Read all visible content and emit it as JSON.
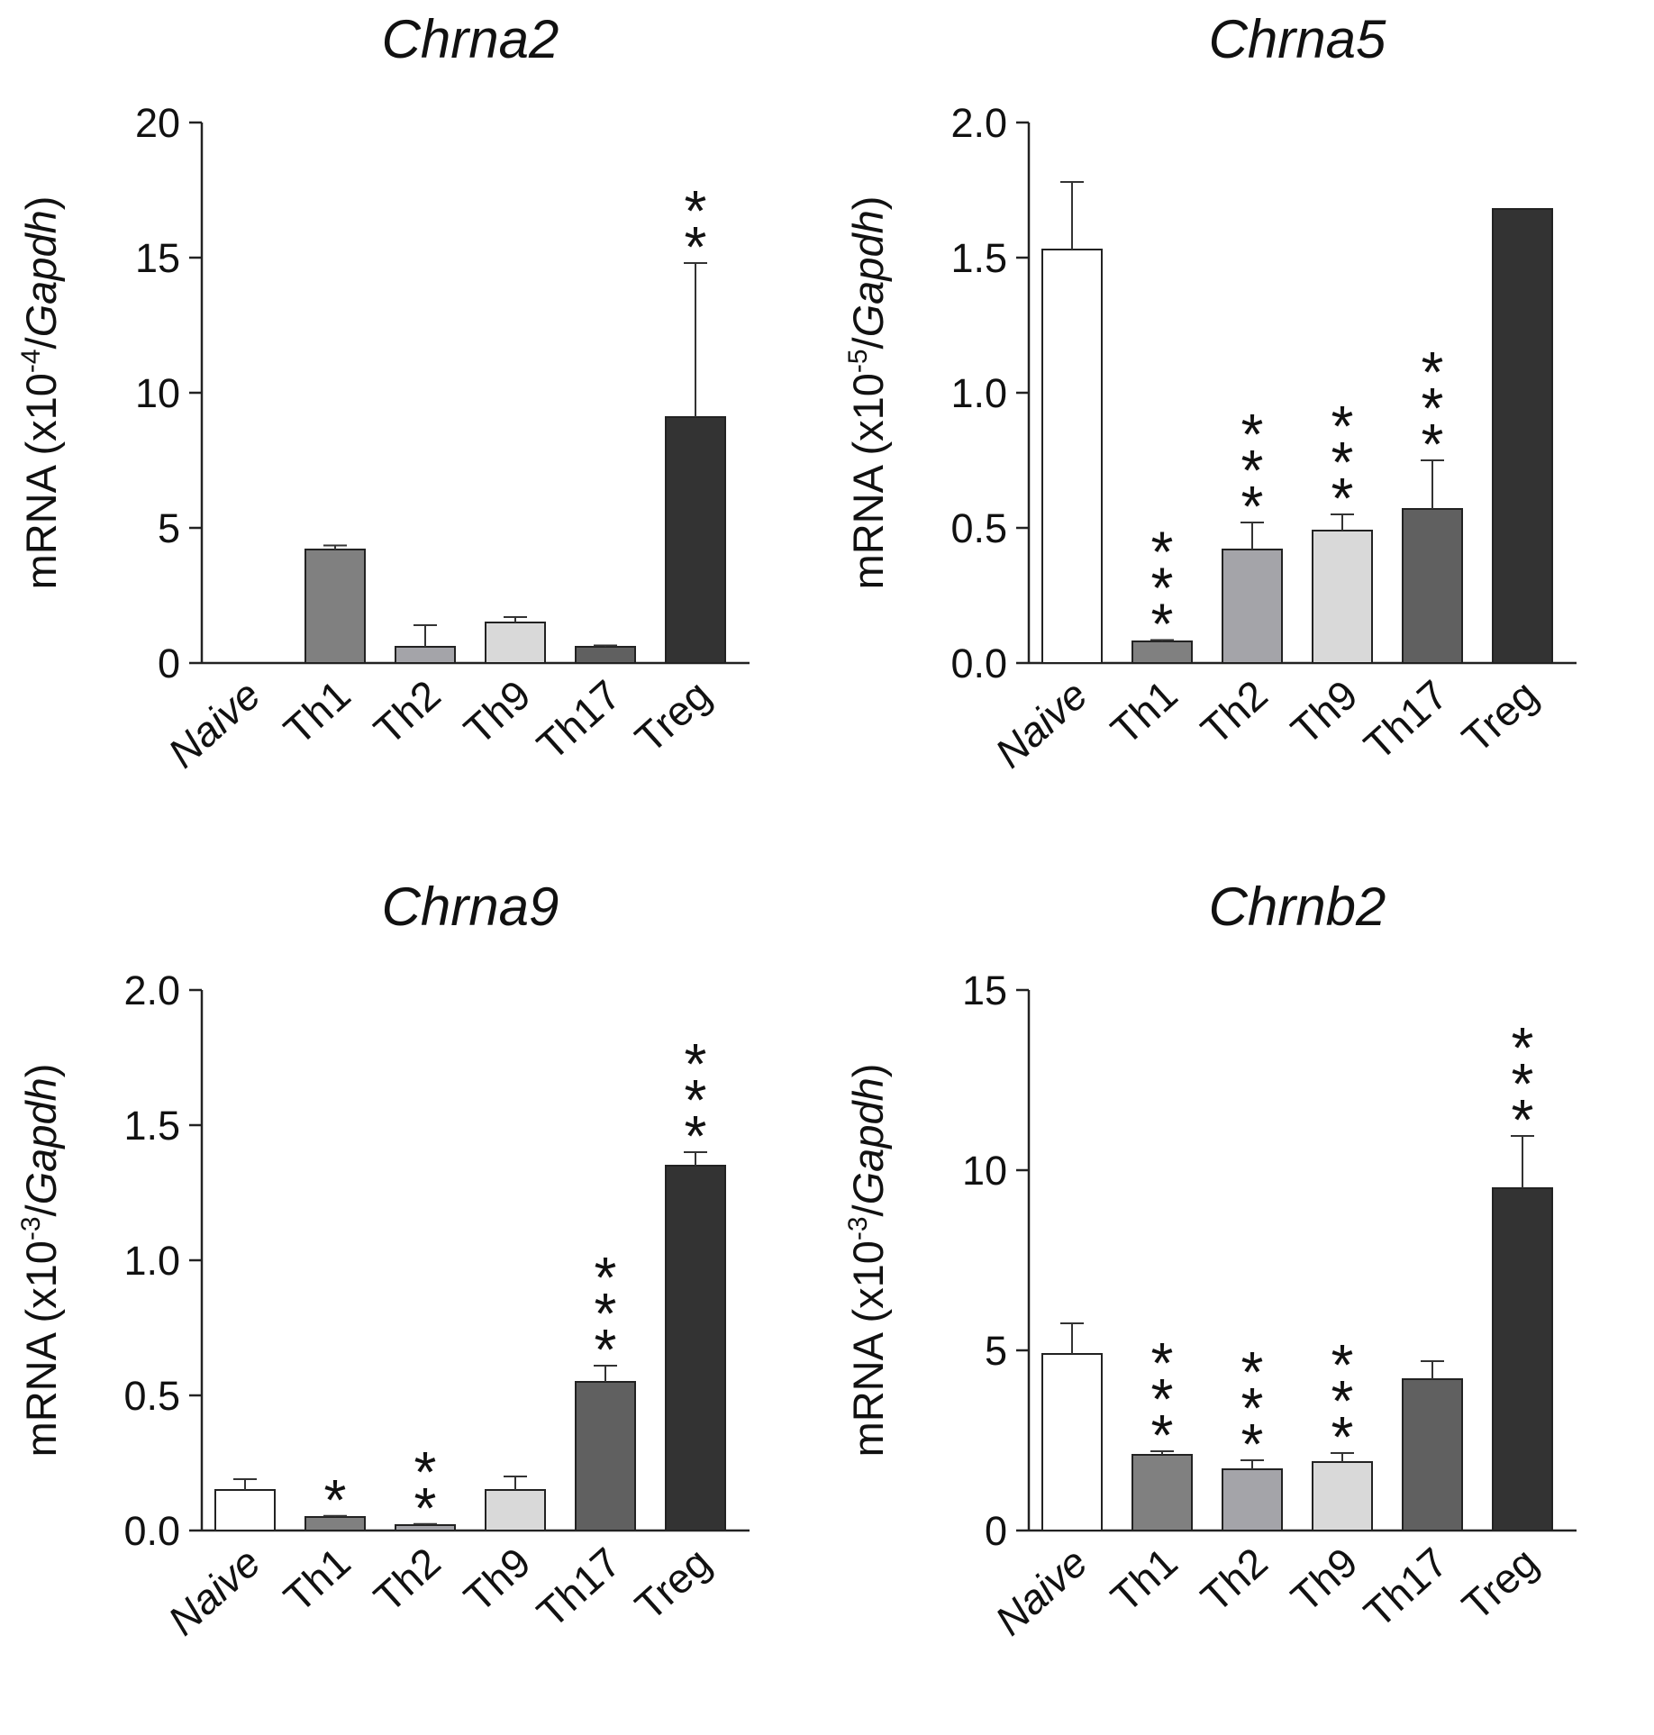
{
  "chart_data": [
    {
      "type": "bar",
      "title": "Chrna2",
      "ylabel": "mRNA (x10",
      "ylabel_exp": "-4",
      "ylabel_gene": "Gapdh",
      "ylim": [
        0,
        20
      ],
      "yticks": [
        0,
        5,
        10,
        15,
        20
      ],
      "ytick_labels": [
        "0",
        "5",
        "10",
        "15",
        "20"
      ],
      "categories": [
        "Naive",
        "Th1",
        "Th2",
        "Th9",
        "Th17",
        "Treg"
      ],
      "values": [
        0,
        4.2,
        0.6,
        1.5,
        0.6,
        9.1
      ],
      "errors": [
        0,
        0.15,
        0.8,
        0.2,
        0.05,
        5.7
      ],
      "significance": [
        "",
        "",
        "",
        "",
        "",
        "**"
      ]
    },
    {
      "type": "bar",
      "title": "Chrna5",
      "ylabel": "mRNA (x10",
      "ylabel_exp": "-5",
      "ylabel_gene": "Gapdh",
      "ylim": [
        0,
        2.0
      ],
      "yticks": [
        0,
        0.5,
        1.0,
        1.5,
        2.0
      ],
      "ytick_labels": [
        "0.0",
        "0.5",
        "1.0",
        "1.5",
        "2.0"
      ],
      "categories": [
        "Naive",
        "Th1",
        "Th2",
        "Th9",
        "Th17",
        "Treg"
      ],
      "values": [
        1.53,
        0.08,
        0.42,
        0.49,
        0.57,
        1.68
      ],
      "errors": [
        0.25,
        0.005,
        0.1,
        0.06,
        0.18,
        0
      ],
      "significance": [
        "",
        "***",
        "***",
        "***",
        "***",
        ""
      ]
    },
    {
      "type": "bar",
      "title": "Chrna9",
      "ylabel": "mRNA (x10",
      "ylabel_exp": "-3",
      "ylabel_gene": "Gapdh",
      "ylim": [
        0,
        2.0
      ],
      "yticks": [
        0,
        0.5,
        1.0,
        1.5,
        2.0
      ],
      "ytick_labels": [
        "0.0",
        "0.5",
        "1.0",
        "1.5",
        "2.0"
      ],
      "categories": [
        "Naive",
        "Th1",
        "Th2",
        "Th9",
        "Th17",
        "Treg"
      ],
      "values": [
        0.15,
        0.05,
        0.02,
        0.15,
        0.55,
        1.35
      ],
      "errors": [
        0.04,
        0.004,
        0.004,
        0.05,
        0.06,
        0.05
      ],
      "significance": [
        "",
        "*",
        "**",
        "",
        "***",
        "***"
      ]
    },
    {
      "type": "bar",
      "title": "Chrnb2",
      "ylabel": "mRNA (x10",
      "ylabel_exp": "-3",
      "ylabel_gene": "Gapdh",
      "ylim": [
        0,
        15
      ],
      "yticks": [
        0,
        5,
        10,
        15
      ],
      "ytick_labels": [
        "0",
        "5",
        "10",
        "15"
      ],
      "categories": [
        "Naive",
        "Th1",
        "Th2",
        "Th9",
        "Th17",
        "Treg"
      ],
      "values": [
        4.9,
        2.1,
        1.7,
        1.9,
        4.2,
        9.5
      ],
      "errors": [
        0.85,
        0.1,
        0.25,
        0.25,
        0.5,
        1.45
      ],
      "significance": [
        "",
        "***",
        "***",
        "***",
        "",
        "***"
      ]
    }
  ],
  "bar_colors": [
    "#ffffff",
    "#808080",
    "#a4a4a9",
    "#d9d9d9",
    "#606060",
    "#333333"
  ]
}
